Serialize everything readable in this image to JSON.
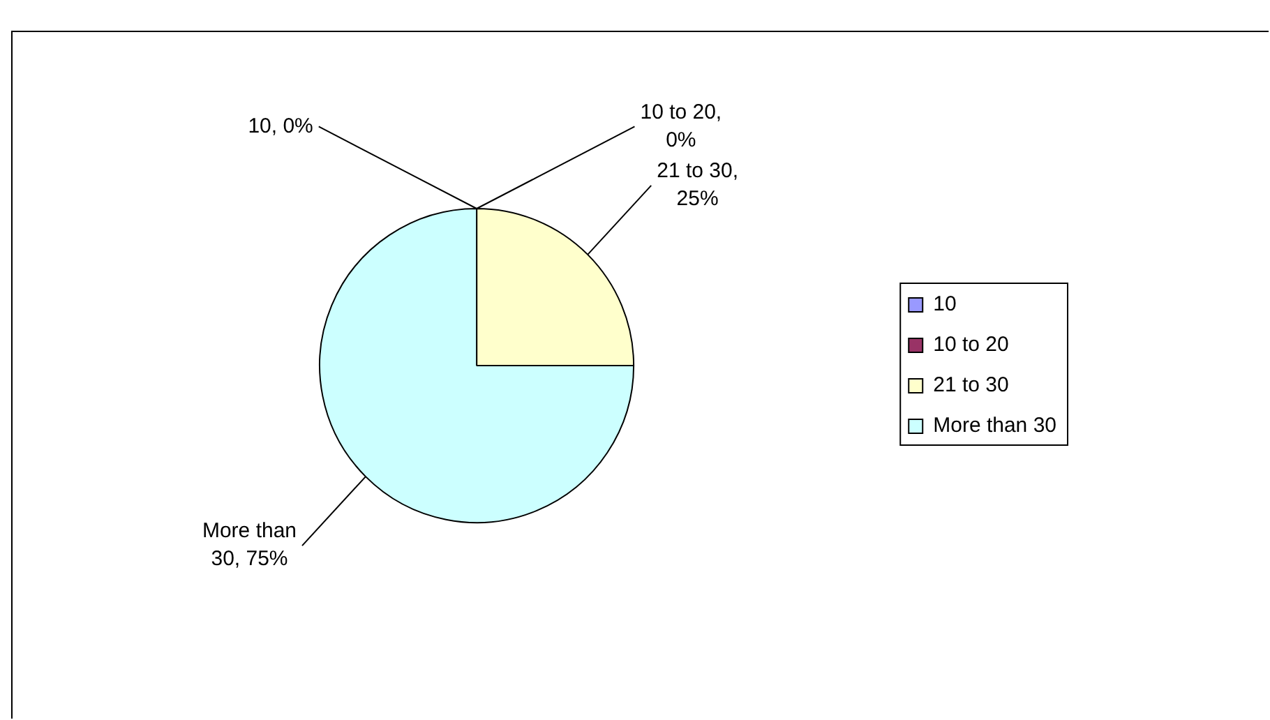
{
  "chart_data": {
    "type": "pie",
    "categories": [
      "10",
      "10 to 20",
      "21 to 30",
      "More than 30"
    ],
    "values": [
      0,
      0,
      25,
      75
    ],
    "colors": [
      "#9999ff",
      "#993366",
      "#ffffcc",
      "#ccffff"
    ],
    "value_labels": [
      "10, 0%",
      "10 to 20, 0%",
      "21 to 30, 25%",
      "More than 30, 75%"
    ],
    "legend": "right"
  }
}
